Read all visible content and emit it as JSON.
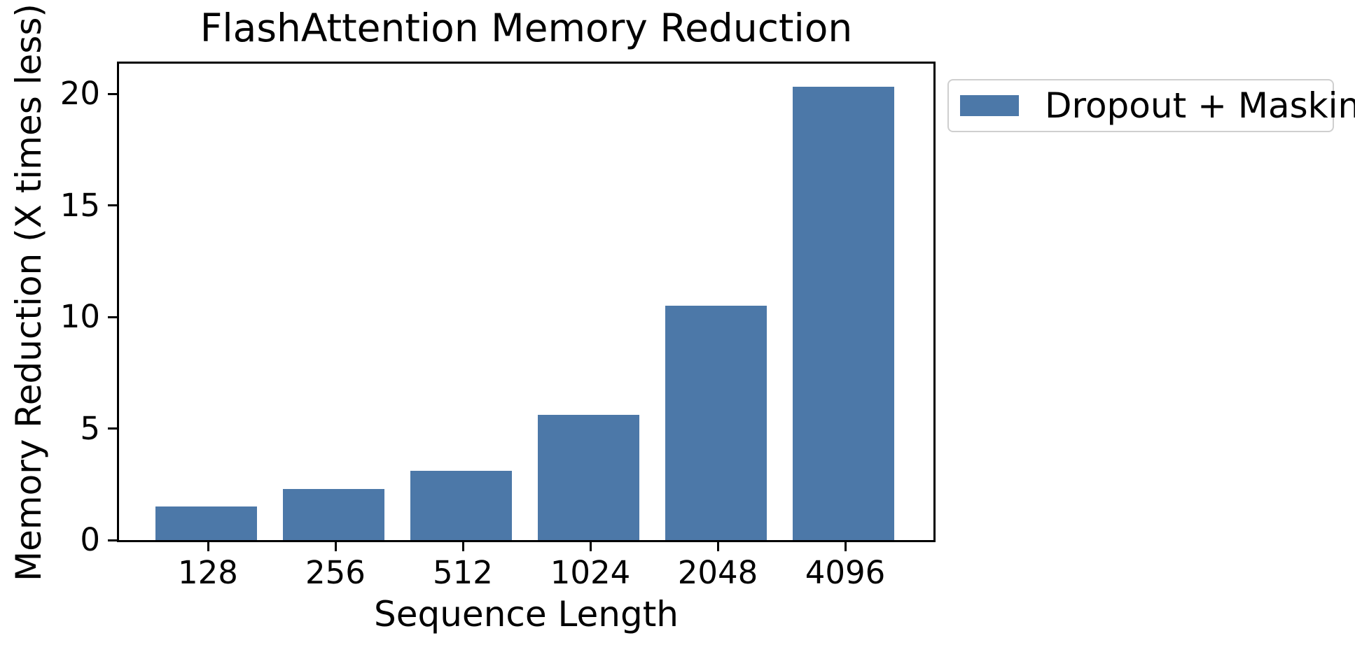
{
  "figure": {
    "background": "#ffffff",
    "text_color": "#000000"
  },
  "chart_data": {
    "type": "bar",
    "title": "FlashAttention Memory Reduction",
    "xlabel": "Sequence Length",
    "ylabel": "Memory Reduction (X times less)",
    "categories": [
      "128",
      "256",
      "512",
      "1024",
      "2048",
      "4096"
    ],
    "series": [
      {
        "name": "Dropout + Masking",
        "values": [
          1.5,
          2.3,
          3.1,
          5.6,
          10.5,
          20.3
        ],
        "color": "#4C78A8"
      }
    ],
    "yticks": [
      0,
      5,
      10,
      15,
      20
    ],
    "ylim": [
      0,
      21.35
    ],
    "grid": false,
    "legend_position": "outside-upper-right"
  },
  "legend": {
    "border_color": "#cfcfcf",
    "items": [
      {
        "label": "Dropout + Masking",
        "color": "#4C78A8"
      }
    ]
  }
}
